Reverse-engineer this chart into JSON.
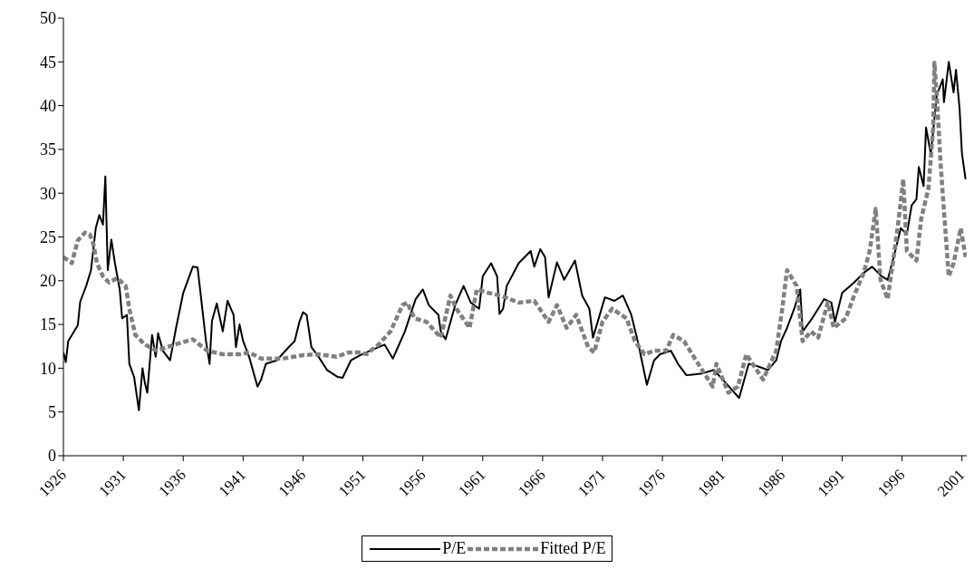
{
  "chart_data": {
    "type": "line",
    "xlim": [
      1926,
      2001.4
    ],
    "xticks": [
      1926,
      1931,
      1936,
      1941,
      1946,
      1951,
      1956,
      1961,
      1966,
      1971,
      1976,
      1981,
      1986,
      1991,
      1996,
      2001
    ],
    "ylim": [
      0,
      50
    ],
    "yticks": [
      0,
      5,
      10,
      15,
      20,
      25,
      30,
      35,
      40,
      45,
      50
    ],
    "legend": "bottom",
    "marker": "none",
    "series": [
      {
        "name": "P/E",
        "color": "#000000",
        "line_style": "solid",
        "x": [
          1926.0,
          1926.2,
          1926.4,
          1927.2,
          1927.4,
          1927.9,
          1928.3,
          1928.7,
          1929.0,
          1929.3,
          1929.5,
          1929.7,
          1930.0,
          1930.3,
          1930.7,
          1930.9,
          1931.3,
          1931.5,
          1931.9,
          1932.3,
          1932.6,
          1932.8,
          1933.0,
          1933.4,
          1933.7,
          1933.9,
          1934.3,
          1934.9,
          1935.4,
          1936.0,
          1936.8,
          1937.2,
          1937.5,
          1937.9,
          1938.2,
          1938.4,
          1938.8,
          1939.3,
          1939.7,
          1940.2,
          1940.4,
          1940.7,
          1941.0,
          1941.5,
          1942.2,
          1942.5,
          1942.9,
          1943.8,
          1944.8,
          1945.3,
          1945.7,
          1946.0,
          1946.3,
          1946.7,
          1947.3,
          1948.0,
          1948.9,
          1949.3,
          1950.0,
          1950.8,
          1951.6,
          1952.8,
          1953.5,
          1954.5,
          1955.4,
          1956.0,
          1956.5,
          1957.3,
          1957.5,
          1957.9,
          1958.7,
          1959.4,
          1960.0,
          1960.7,
          1961.0,
          1961.7,
          1962.2,
          1962.4,
          1962.7,
          1963.0,
          1964.0,
          1965.0,
          1965.3,
          1965.8,
          1966.2,
          1966.5,
          1967.2,
          1967.8,
          1968.7,
          1969.3,
          1969.9,
          1970.2,
          1971.2,
          1972.0,
          1972.7,
          1973.4,
          1974.0,
          1974.7,
          1975.3,
          1975.8,
          1976.7,
          1977.3,
          1978.0,
          1979.3,
          1980.3,
          1981.3,
          1982.4,
          1983.2,
          1984.0,
          1984.8,
          1985.5,
          1985.9,
          1986.4,
          1987.0,
          1987.5,
          1987.7,
          1988.5,
          1989.0,
          1989.5,
          1990.1,
          1990.4,
          1991.0,
          1992.0,
          1992.8,
          1993.5,
          1994.3,
          1994.8,
          1995.3,
          1995.9,
          1996.4,
          1996.8,
          1997.2,
          1997.4,
          1997.8,
          1998.0,
          1998.4,
          1998.9,
          1999.4,
          1999.5,
          1999.9,
          2000.3,
          2000.5,
          2000.8,
          2001.0,
          2001.3
        ],
        "values": [
          11.8,
          10.7,
          13.1,
          14.9,
          17.6,
          19.4,
          21.2,
          26.0,
          27.5,
          26.4,
          31.9,
          21.2,
          24.7,
          22.0,
          19.0,
          15.7,
          16.1,
          10.5,
          9.0,
          5.2,
          10.0,
          8.3,
          7.2,
          13.8,
          11.3,
          14.0,
          12.0,
          10.9,
          14.6,
          18.6,
          21.6,
          21.5,
          17.9,
          13.1,
          10.5,
          15.4,
          17.4,
          14.2,
          17.7,
          16.1,
          12.4,
          15.0,
          13.1,
          11.3,
          7.9,
          8.7,
          10.5,
          10.9,
          12.4,
          13.1,
          15.3,
          16.4,
          16.1,
          12.4,
          11.3,
          9.8,
          9.0,
          8.9,
          10.9,
          11.5,
          12.0,
          12.7,
          11.1,
          14.2,
          17.9,
          19.0,
          17.2,
          16.1,
          14.2,
          13.3,
          17.2,
          19.4,
          17.5,
          16.8,
          20.5,
          22.0,
          20.5,
          16.2,
          16.8,
          19.4,
          22.0,
          23.4,
          21.6,
          23.6,
          22.7,
          18.1,
          22.1,
          20.1,
          22.3,
          18.3,
          16.8,
          13.5,
          18.1,
          17.7,
          18.3,
          16.1,
          12.7,
          8.1,
          10.9,
          11.6,
          12.0,
          10.5,
          9.2,
          9.4,
          9.8,
          8.3,
          6.6,
          10.5,
          10.2,
          9.8,
          10.9,
          13.1,
          14.6,
          16.8,
          19.0,
          14.2,
          15.7,
          16.8,
          17.9,
          17.5,
          15.3,
          18.6,
          19.8,
          20.9,
          21.6,
          20.5,
          20.1,
          22.7,
          26.0,
          25.3,
          28.6,
          29.3,
          33.0,
          30.8,
          37.5,
          34.5,
          41.2,
          43.0,
          40.4,
          45.0,
          41.5,
          44.1,
          39.7,
          34.5,
          31.6
        ]
      },
      {
        "name": "Fitted P/E",
        "color": "#808080",
        "line_style": "dashed",
        "x": [
          1926.0,
          1926.7,
          1927.2,
          1927.8,
          1928.2,
          1928.5,
          1928.8,
          1929.3,
          1929.8,
          1930.5,
          1931.2,
          1931.5,
          1932.0,
          1932.8,
          1933.8,
          1935.3,
          1936.8,
          1938.0,
          1939.3,
          1940.8,
          1941.5,
          1942.5,
          1944.3,
          1946.0,
          1947.3,
          1948.8,
          1949.8,
          1950.8,
          1951.3,
          1952.3,
          1953.3,
          1954.3,
          1954.7,
          1955.3,
          1956.3,
          1957.5,
          1958.3,
          1958.8,
          1959.9,
          1960.5,
          1961.5,
          1962.5,
          1964.0,
          1965.3,
          1966.5,
          1967.2,
          1968.0,
          1968.8,
          1969.8,
          1970.3,
          1971.0,
          1971.8,
          1973.0,
          1973.7,
          1974.5,
          1975.3,
          1976.3,
          1976.9,
          1977.8,
          1978.8,
          1980.2,
          1980.5,
          1981.5,
          1982.3,
          1983.0,
          1984.4,
          1985.5,
          1986.0,
          1986.4,
          1987.2,
          1987.7,
          1988.4,
          1989.0,
          1989.8,
          1990.3,
          1991.3,
          1992.0,
          1992.8,
          1993.3,
          1993.8,
          1994.2,
          1994.8,
          1995.3,
          1995.7,
          1996.1,
          1996.4,
          1997.2,
          1997.6,
          1998.2,
          1998.6,
          1998.7,
          1998.9,
          1999.2,
          1999.5,
          1999.9,
          2000.3,
          2000.9,
          2001.3
        ],
        "values": [
          22.7,
          22.0,
          24.6,
          25.5,
          25.3,
          24.2,
          22.0,
          20.5,
          19.8,
          20.3,
          19.4,
          16.8,
          13.8,
          12.7,
          12.0,
          12.7,
          13.3,
          12.0,
          11.6,
          11.6,
          11.8,
          11.1,
          11.1,
          11.5,
          11.6,
          11.3,
          11.8,
          11.8,
          11.6,
          12.7,
          14.2,
          17.2,
          17.5,
          15.7,
          15.3,
          13.5,
          18.3,
          16.8,
          14.6,
          19.0,
          18.6,
          18.3,
          17.5,
          17.7,
          15.3,
          17.2,
          14.6,
          16.1,
          12.4,
          11.8,
          15.3,
          16.8,
          15.7,
          13.1,
          11.6,
          12.0,
          12.0,
          13.8,
          13.1,
          10.9,
          7.9,
          10.5,
          7.2,
          7.9,
          11.6,
          8.7,
          12.0,
          16.8,
          21.2,
          19.4,
          13.1,
          14.2,
          13.5,
          17.5,
          14.6,
          15.7,
          18.3,
          20.9,
          23.4,
          28.2,
          20.1,
          17.9,
          22.7,
          26.8,
          31.6,
          23.4,
          22.3,
          27.1,
          30.5,
          37.5,
          44.9,
          41.2,
          33.8,
          27.9,
          20.5,
          22.0,
          26.0,
          22.7
        ]
      }
    ]
  }
}
